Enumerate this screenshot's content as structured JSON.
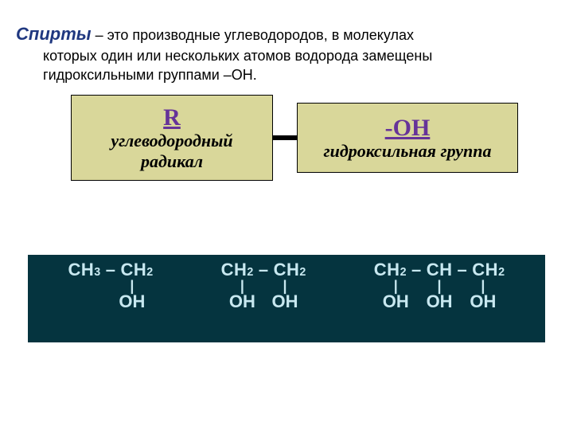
{
  "colors": {
    "title": "#203880",
    "box_bg": "#d9d79a",
    "box_head": "#663399",
    "strip_bg": "#05343f",
    "mol_text": "#c8e8f0"
  },
  "definition": {
    "title": "Спирты",
    "dash": " – ",
    "body_line1": "это производные углеводородов, в молекулах",
    "body_line2": "которых  один или нескольких атомов водорода замещены",
    "body_line3": "гидроксильными группами –ОН."
  },
  "box_left": {
    "head": "R",
    "sub_line1": "углеводородный",
    "sub_line2": "радикал"
  },
  "box_right": {
    "head": "-ОН",
    "sub": "гидроксильная группа"
  },
  "molecules": [
    {
      "top": [
        "CH",
        "3",
        " – ",
        "CH",
        "2"
      ],
      "bond_cols": [
        0,
        1
      ],
      "oh_cols": [
        0,
        1
      ],
      "col_widths": [
        "50%",
        "50%"
      ],
      "bonds": [
        "",
        "|"
      ],
      "ohs": [
        "",
        "OH"
      ]
    },
    {
      "top": [
        "CH",
        "2",
        " – ",
        "CH",
        "2"
      ],
      "col_widths": [
        "50%",
        "50%"
      ],
      "bonds": [
        "|",
        "|"
      ],
      "ohs": [
        "OH",
        "OH"
      ]
    },
    {
      "top": [
        "CH",
        "2",
        " – ",
        "CH",
        " – ",
        "CH",
        "2"
      ],
      "col_widths": [
        "33.3%",
        "33.3%",
        "33.3%"
      ],
      "bonds": [
        "|",
        "|",
        "|"
      ],
      "ohs": [
        "OH",
        "OH",
        "OH"
      ]
    }
  ]
}
